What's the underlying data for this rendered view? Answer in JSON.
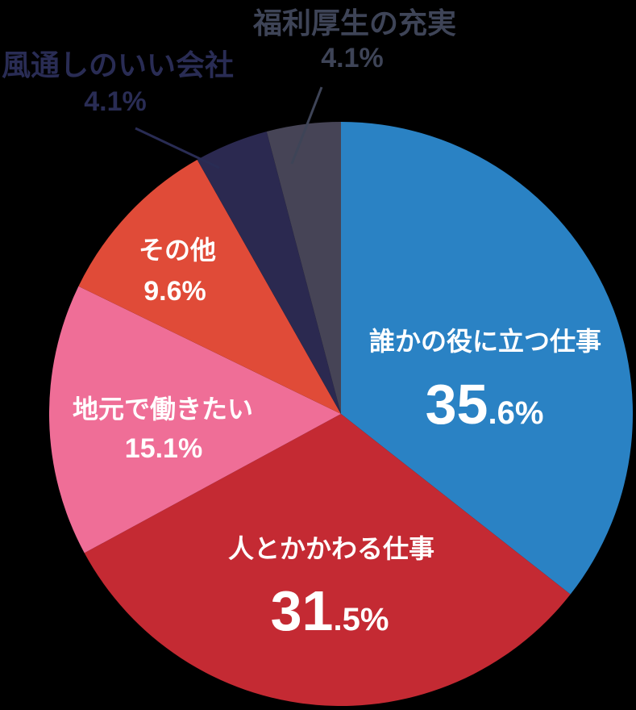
{
  "chart_data": {
    "type": "pie",
    "title": "",
    "start_angle": "top",
    "direction": "clockwise",
    "total": 100,
    "background": "#000000",
    "legend": "none",
    "slices": [
      {
        "label": "誰かの役に立つ仕事",
        "value": 35.6,
        "value_int": "35",
        "value_frac": ".6%",
        "color": "#2a82c4",
        "text_color": "#ffffff",
        "label_position": "inside"
      },
      {
        "label": "人とかかわる仕事",
        "value": 31.5,
        "value_int": "31",
        "value_frac": ".5%",
        "color": "#c42a33",
        "text_color": "#ffffff",
        "label_position": "inside"
      },
      {
        "label": "地元で働きたい",
        "value": 15.1,
        "value_text": "15.1%",
        "color": "#ef6e97",
        "text_color": "#ffffff",
        "label_position": "inside"
      },
      {
        "label": "その他",
        "value": 9.6,
        "value_text": "9.6%",
        "color": "#e04b38",
        "text_color": "#ffffff",
        "label_position": "inside"
      },
      {
        "label": "風通しのいい会社",
        "value": 4.1,
        "value_text": "4.1%",
        "color": "#2b2950",
        "text_color": "#292c54",
        "label_position": "outside"
      },
      {
        "label": "福利厚生の充実",
        "value": 4.1,
        "value_text": "4.1%",
        "color": "#464456",
        "text_color": "#3e4457",
        "label_position": "outside"
      }
    ]
  }
}
